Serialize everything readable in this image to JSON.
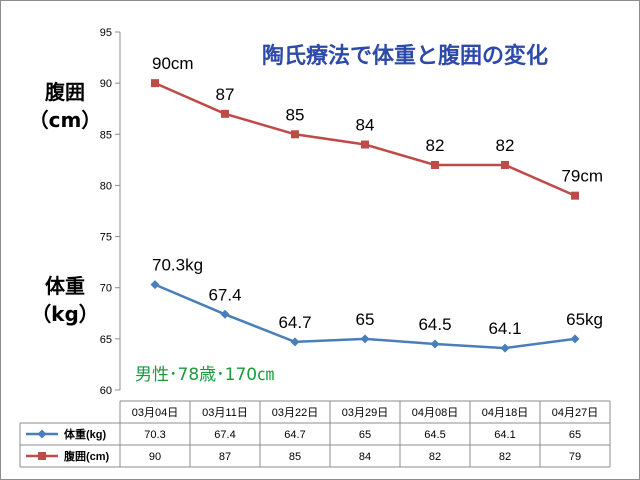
{
  "title": "陶氏療法で体重と腹囲の変化",
  "note": "男性･78歳･170㎝",
  "left_labels": {
    "waist": [
      "腹囲",
      "（cm）"
    ],
    "weight": [
      "体重",
      "（kg）"
    ]
  },
  "chart_data": {
    "type": "line",
    "title": "陶氏療法で体重と腹囲の変化",
    "categories": [
      "03月04日",
      "03月11日",
      "03月22日",
      "03月29日",
      "04月08日",
      "04月18日",
      "04月27日"
    ],
    "ylim": [
      60,
      95
    ],
    "yticks": [
      60,
      65,
      70,
      75,
      80,
      85,
      90,
      95
    ],
    "grid": false,
    "legend": "bottom data table",
    "series": [
      {
        "name": "体重(kg)",
        "color": "#4a7ebb",
        "marker": "diamond",
        "values": [
          70.3,
          67.4,
          64.7,
          65,
          64.5,
          64.1,
          65
        ],
        "table_values": [
          "70.3",
          "67.4",
          "64.7",
          "65",
          "64.5",
          "64.1",
          "65"
        ],
        "data_labels": [
          "70.3kg",
          "67.4",
          "64.7",
          "65",
          "64.5",
          "64.1",
          "65kg"
        ]
      },
      {
        "name": "腹囲(cm)",
        "color": "#be4b48",
        "marker": "square",
        "values": [
          90,
          87,
          85,
          84,
          82,
          82,
          79
        ],
        "table_values": [
          "90",
          "87",
          "85",
          "84",
          "82",
          "82",
          "79"
        ],
        "data_labels": [
          "90cm",
          "87",
          "85",
          "84",
          "82",
          "82",
          "79cm"
        ]
      }
    ]
  }
}
